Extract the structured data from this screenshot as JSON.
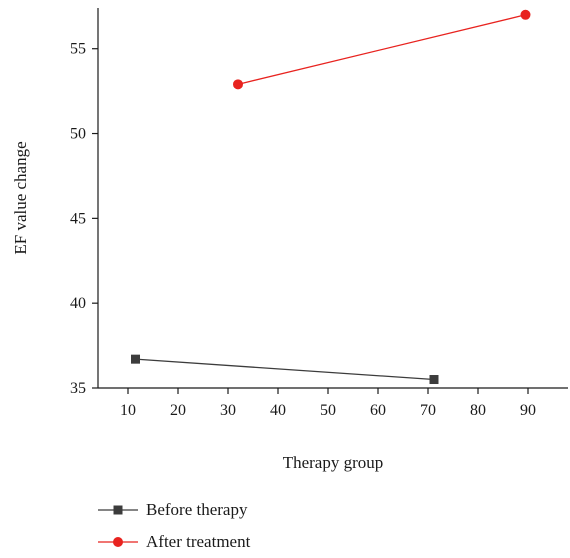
{
  "chart_data": {
    "type": "line",
    "xlabel": "Therapy group",
    "ylabel": "EF value change",
    "xlim": [
      4,
      98
    ],
    "ylim": [
      35,
      57.4
    ],
    "xticks": [
      10,
      20,
      30,
      40,
      50,
      60,
      70,
      80,
      90
    ],
    "yticks": [
      35,
      40,
      45,
      50,
      55
    ],
    "legend_position": "bottom",
    "series": [
      {
        "name": "Before therapy",
        "color": "#3c3c3c",
        "marker": "square",
        "x": [
          11.5,
          71.2
        ],
        "y": [
          36.7,
          35.5
        ]
      },
      {
        "name": "After treatment",
        "color": "#e8231f",
        "marker": "circle",
        "x": [
          32,
          89.5
        ],
        "y": [
          52.9,
          57
        ]
      }
    ]
  }
}
